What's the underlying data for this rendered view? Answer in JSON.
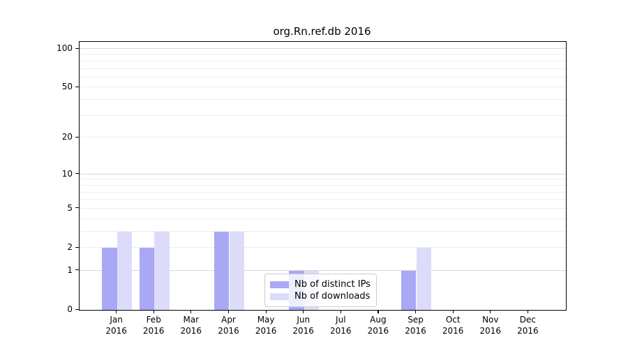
{
  "title": "org.Rn.ref.db 2016",
  "chart_data": {
    "type": "bar",
    "title": "org.Rn.ref.db 2016",
    "categories": [
      "Jan",
      "Feb",
      "Mar",
      "Apr",
      "May",
      "Jun",
      "Jul",
      "Aug",
      "Sep",
      "Oct",
      "Nov",
      "Dec"
    ],
    "x_tick_second_line": "2016",
    "series": [
      {
        "name": "Nb of distinct IPs",
        "color": "#a8a8f5",
        "values": [
          2,
          2,
          0,
          3,
          0,
          1,
          0,
          0,
          1,
          0,
          0,
          0
        ]
      },
      {
        "name": "Nb of downloads",
        "color": "#dcdcfa",
        "values": [
          3,
          3,
          0,
          3,
          0,
          1,
          0,
          0,
          2,
          0,
          0,
          0
        ]
      }
    ],
    "yscale": "log1p",
    "yticks": [
      0,
      1,
      2,
      5,
      10,
      20,
      50,
      100
    ],
    "ylim": [
      0,
      113
    ],
    "gridlines_minor": [
      2,
      3,
      4,
      5,
      6,
      7,
      8,
      9,
      20,
      30,
      40,
      50,
      60,
      70,
      80,
      90
    ],
    "gridlines_major": [
      1,
      10,
      100
    ],
    "grid": "horizontal only",
    "legend_position": "inside lower-center",
    "colors": {
      "axis": "#000000",
      "grid_minor": "#ededed",
      "grid_major": "#d5d5d5",
      "background": "#ffffff"
    }
  }
}
